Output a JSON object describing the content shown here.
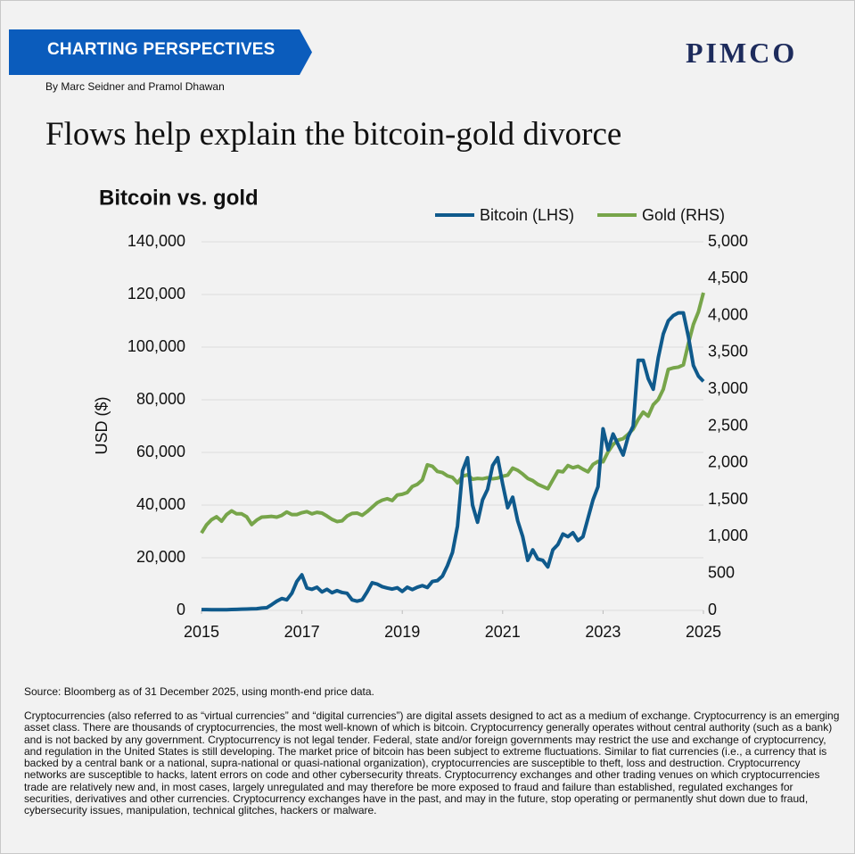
{
  "header": {
    "banner": "CHARTING PERSPECTIVES",
    "authors": "By Marc Seidner and Pramol Dhawan",
    "logo": "PIMCO",
    "title": "Flows help explain the bitcoin-gold divorce"
  },
  "chart_data": {
    "type": "line",
    "title": "Bitcoin vs. gold",
    "y_label": "USD ($)",
    "x": [
      2015,
      2015.1,
      2015.2,
      2015.3,
      2015.4,
      2015.5,
      2015.6,
      2015.7,
      2015.8,
      2015.9,
      2016,
      2016.1,
      2016.2,
      2016.3,
      2016.4,
      2016.5,
      2016.6,
      2016.7,
      2016.8,
      2016.9,
      2017,
      2017.1,
      2017.2,
      2017.3,
      2017.4,
      2017.5,
      2017.6,
      2017.7,
      2017.8,
      2017.9,
      2018,
      2018.1,
      2018.2,
      2018.3,
      2018.4,
      2018.5,
      2018.6,
      2018.7,
      2018.8,
      2018.9,
      2019,
      2019.1,
      2019.2,
      2019.3,
      2019.4,
      2019.5,
      2019.6,
      2019.7,
      2019.8,
      2019.9,
      2020,
      2020.1,
      2020.2,
      2020.3,
      2020.4,
      2020.5,
      2020.6,
      2020.7,
      2020.8,
      2020.9,
      2021,
      2021.1,
      2021.2,
      2021.3,
      2021.4,
      2021.5,
      2021.6,
      2021.7,
      2021.8,
      2021.9,
      2022,
      2022.1,
      2022.2,
      2022.3,
      2022.4,
      2022.5,
      2022.6,
      2022.7,
      2022.8,
      2022.9,
      2023,
      2023.1,
      2023.2,
      2023.3,
      2023.4,
      2023.5,
      2023.6,
      2023.7,
      2023.8,
      2023.9,
      2024,
      2024.1,
      2024.2,
      2024.3,
      2024.4,
      2024.5,
      2024.6,
      2024.7,
      2024.8,
      2024.9,
      2025
    ],
    "series": [
      {
        "name": "Bitcoin (LHS)",
        "color": "#0f5a8c",
        "values": [
          300,
          280,
          260,
          250,
          250,
          260,
          350,
          400,
          450,
          500,
          580,
          650,
          900,
          1000,
          2200,
          3500,
          4500,
          4000,
          6500,
          11000,
          13500,
          8500,
          8000,
          8800,
          7000,
          8000,
          6700,
          7500,
          6800,
          6500,
          4000,
          3500,
          4000,
          7000,
          10500,
          10000,
          9000,
          8500,
          8100,
          8600,
          7200,
          8800,
          7900,
          8800,
          9400,
          8700,
          11000,
          11300,
          13000,
          17000,
          22000,
          32000,
          53000,
          58000,
          40000,
          33500,
          42000,
          46000,
          55000,
          58000,
          48000,
          39000,
          43000,
          34000,
          28000,
          19000,
          23000,
          19500,
          19000,
          16500,
          23000,
          25000,
          29000,
          28000,
          29500,
          26500,
          28000,
          35000,
          42000,
          47000,
          69000,
          61000,
          67000,
          63000,
          59000,
          66000,
          70000,
          95000,
          95000,
          88000,
          84000,
          96000,
          105000,
          110000,
          112000,
          113000,
          113000,
          104000,
          93000,
          89000,
          87000
        ]
      },
      {
        "name": "Gold (RHS)",
        "color": "#77a54a",
        "axis": "y2",
        "values": [
          1050,
          1160,
          1230,
          1270,
          1210,
          1300,
          1350,
          1310,
          1310,
          1270,
          1165,
          1225,
          1265,
          1270,
          1275,
          1265,
          1290,
          1335,
          1300,
          1300,
          1325,
          1340,
          1310,
          1330,
          1320,
          1280,
          1235,
          1205,
          1215,
          1280,
          1315,
          1320,
          1290,
          1340,
          1400,
          1460,
          1495,
          1515,
          1490,
          1565,
          1575,
          1600,
          1680,
          1710,
          1770,
          1975,
          1955,
          1885,
          1870,
          1825,
          1805,
          1730,
          1820,
          1840,
          1780,
          1790,
          1785,
          1800,
          1785,
          1795,
          1820,
          1835,
          1930,
          1900,
          1850,
          1790,
          1760,
          1710,
          1680,
          1650,
          1770,
          1890,
          1880,
          1965,
          1935,
          1955,
          1915,
          1880,
          1980,
          2020,
          2015,
          2150,
          2250,
          2310,
          2330,
          2390,
          2460,
          2590,
          2690,
          2635,
          2790,
          2860,
          3000,
          3270,
          3290,
          3300,
          3330,
          3620,
          3880,
          4050,
          4310
        ]
      }
    ],
    "xlim": [
      2015,
      2025
    ],
    "xticks": [
      2015,
      2017,
      2019,
      2021,
      2023,
      2025
    ],
    "ylim": [
      0,
      140000
    ],
    "yticks": [
      0,
      {
        "value": 20000,
        "label": "20,000"
      },
      {
        "value": 40000,
        "label": "40,000"
      },
      {
        "value": 60000,
        "label": "60,000"
      },
      {
        "value": 80000,
        "label": "80,000"
      },
      {
        "value": 100000,
        "label": "100,000"
      },
      {
        "value": 120000,
        "label": "120,000"
      },
      {
        "value": 140000,
        "label": "140,000"
      }
    ],
    "y2lim": [
      0,
      5000
    ],
    "y2ticks": [
      0,
      500,
      {
        "value": 1000,
        "label": "1,000"
      },
      {
        "value": 1500,
        "label": "1,500"
      },
      {
        "value": 2000,
        "label": "2,000"
      },
      {
        "value": 2500,
        "label": "2,500"
      },
      {
        "value": 3000,
        "label": "3,000"
      },
      {
        "value": 3500,
        "label": "3,500"
      },
      {
        "value": 4000,
        "label": "4,000"
      },
      {
        "value": 4500,
        "label": "4,500"
      },
      {
        "value": 5000,
        "label": "5,000"
      }
    ],
    "grid": true,
    "legend": "top-right"
  },
  "footer": {
    "source": "Source: Bloomberg as of 31 December 2025, using month-end price data.",
    "disclaimer": "Cryptocurrencies (also referred to as “virtual currencies” and “digital currencies”) are digital assets designed to act as a medium of exchange. Cryptocurrency is an emerging asset class. There are thousands of cryptocurrencies, the most well-known of which is bitcoin. Cryptocurrency generally operates without central authority (such as a bank) and is not backed by any government. Cryptocurrency is not legal tender. Federal, state and/or foreign governments may restrict the use and exchange of cryptocurrency, and regulation in the United States is still developing. The market price of bitcoin has been subject to extreme fluctuations. Similar to fiat currencies (i.e., a currency that is backed by a central bank or a national, supra-national or quasi-national organization), cryptocurrencies are susceptible to theft, loss and destruction. Cryptocurrency networks are susceptible to hacks, latent errors on code and other cybersecurity threats. Cryptocurrency exchanges and other trading venues on which cryptocurrencies trade are relatively new and, in most cases, largely unregulated and may therefore be more exposed to fraud and failure than established, regulated exchanges for securities, derivatives and other currencies. Cryptocurrency exchanges have in the past, and may in the future, stop operating or permanently shut down due to fraud, cybersecurity issues, manipulation, technical glitches, hackers or malware."
  }
}
